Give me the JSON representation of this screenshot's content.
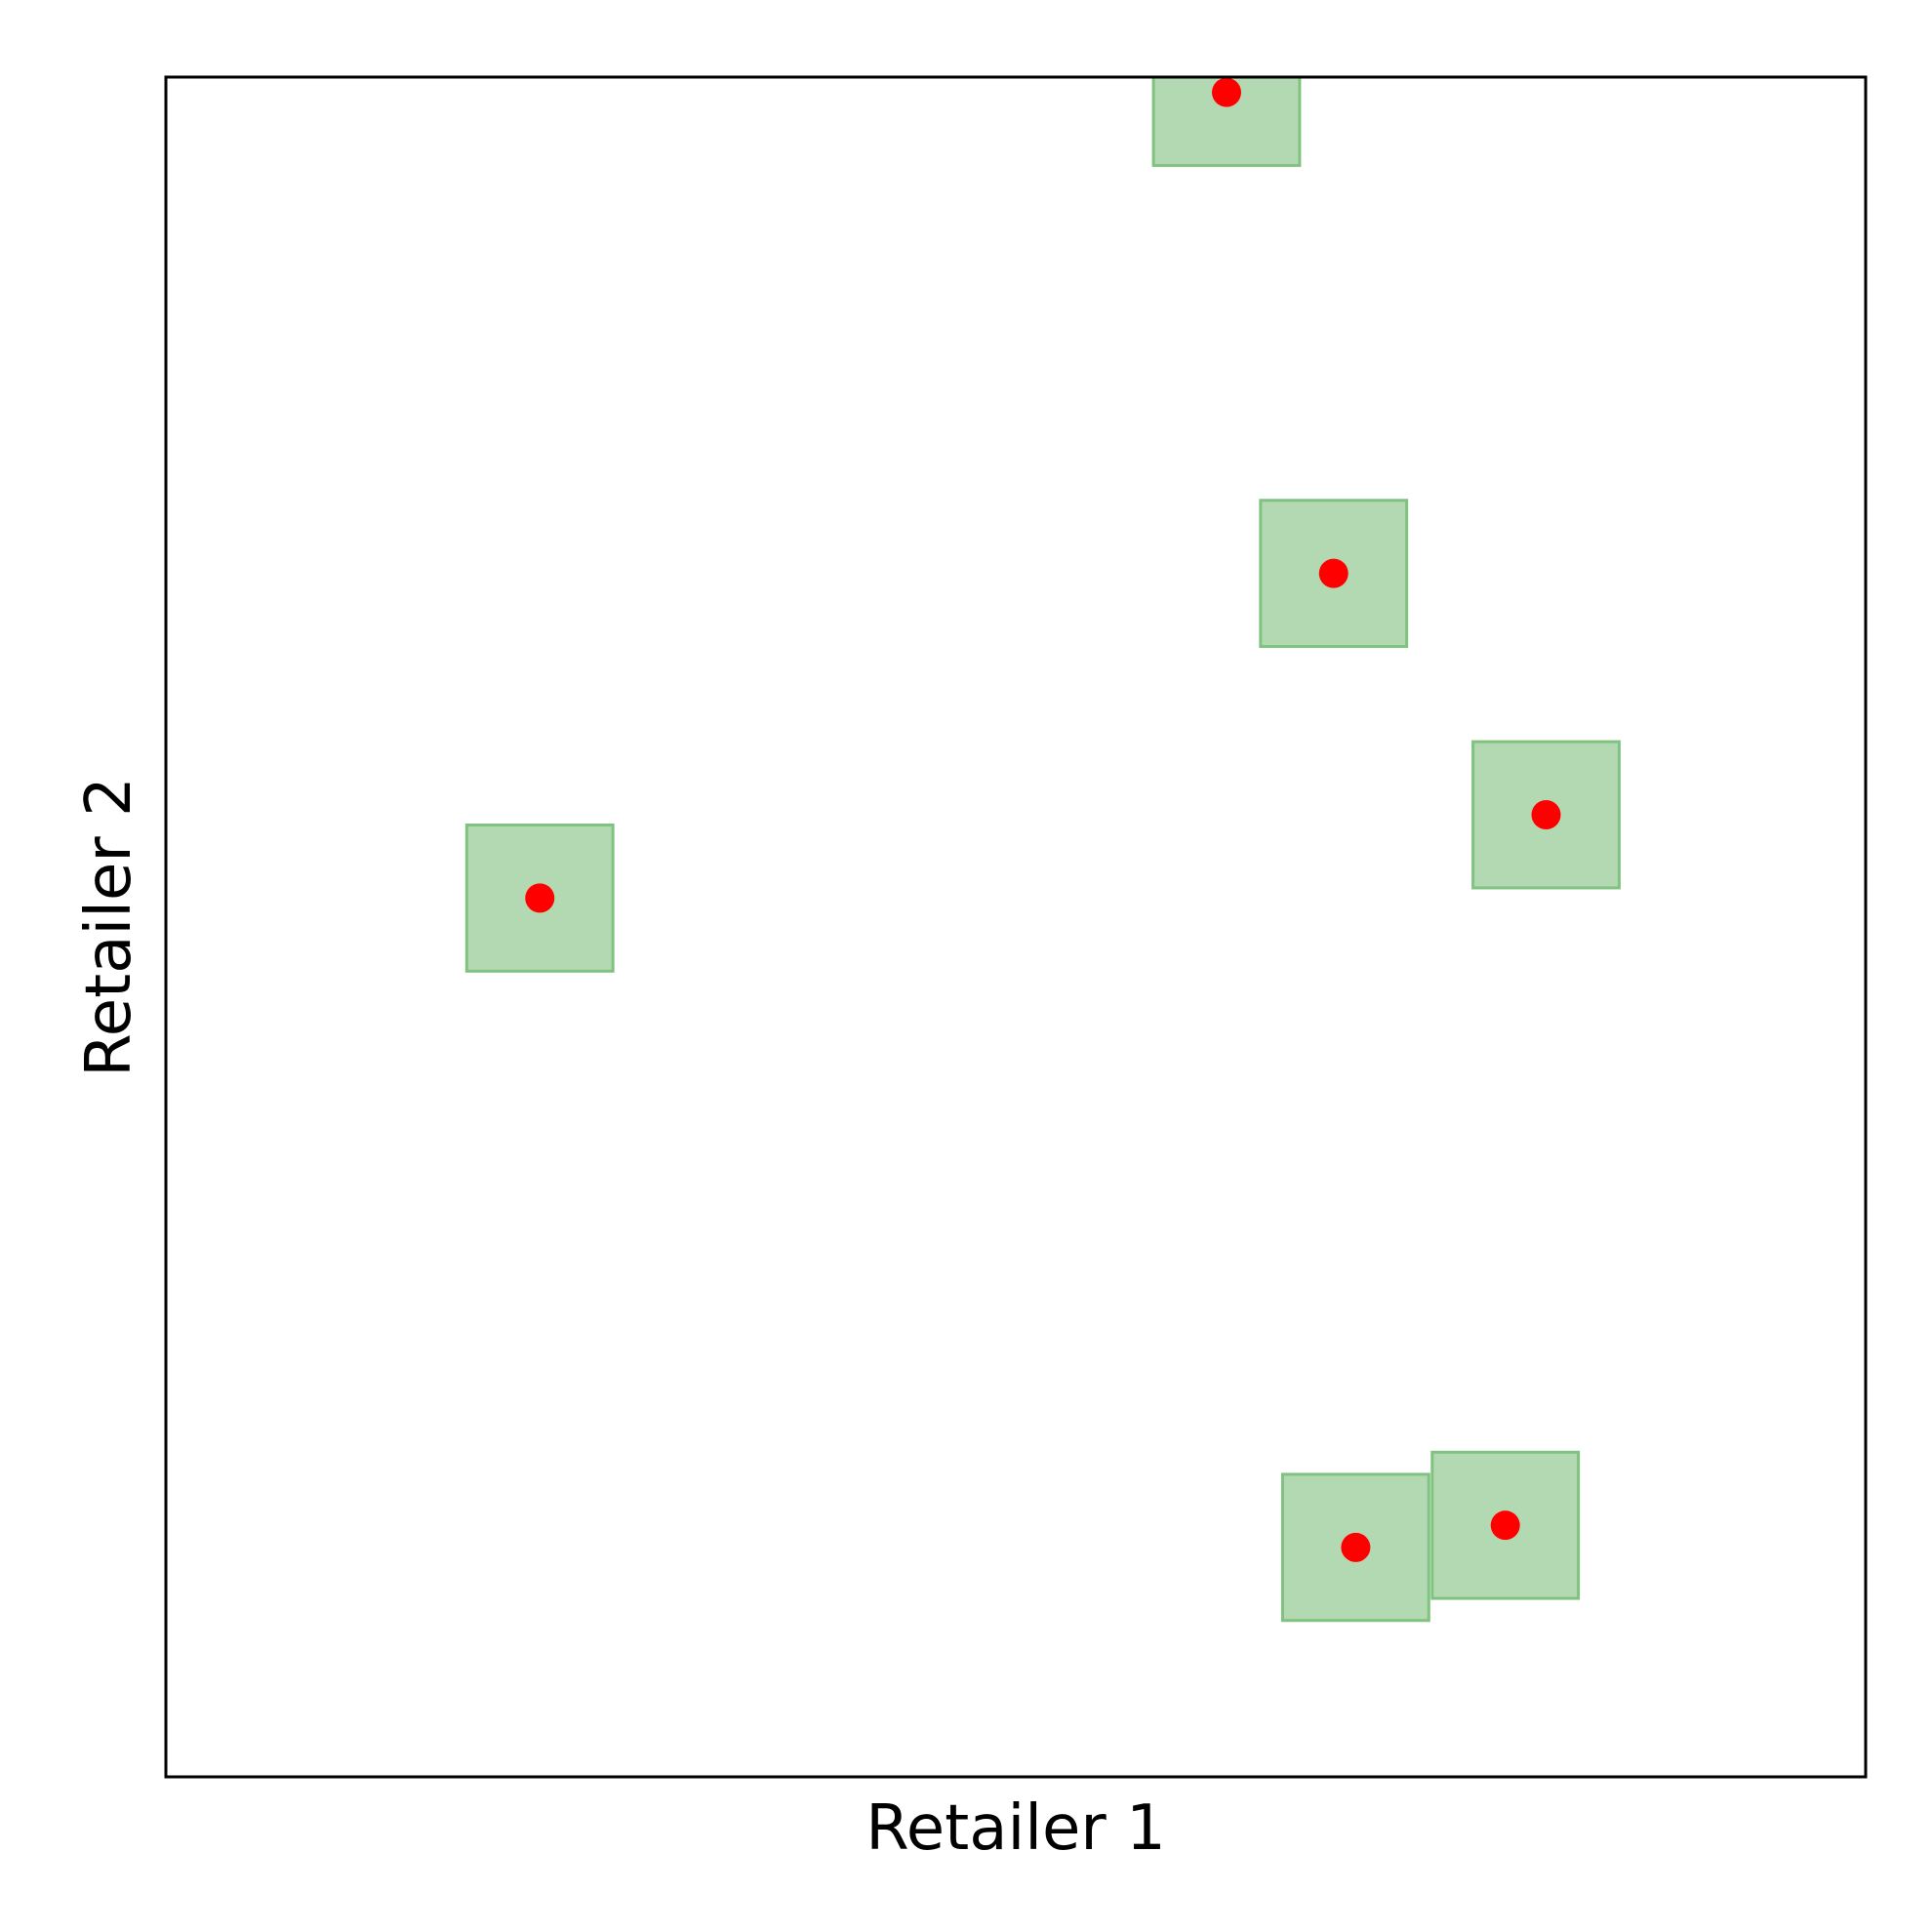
{
  "chart_data": {
    "type": "scatter",
    "title": "",
    "xlabel": "Retailer 1",
    "ylabel": "Retailer 2",
    "xlim": [
      0,
      1
    ],
    "ylim": [
      0,
      1
    ],
    "show_ticks": false,
    "grid": false,
    "point_color": "#ff0000",
    "box_fill": "#b3d9b3",
    "box_stroke": "#80c280",
    "box_half_width": 0.043,
    "points": [
      {
        "x": 0.624,
        "y": 0.991
      },
      {
        "x": 0.687,
        "y": 0.708
      },
      {
        "x": 0.812,
        "y": 0.566
      },
      {
        "x": 0.22,
        "y": 0.517
      },
      {
        "x": 0.7,
        "y": 0.135
      },
      {
        "x": 0.788,
        "y": 0.148
      }
    ]
  }
}
